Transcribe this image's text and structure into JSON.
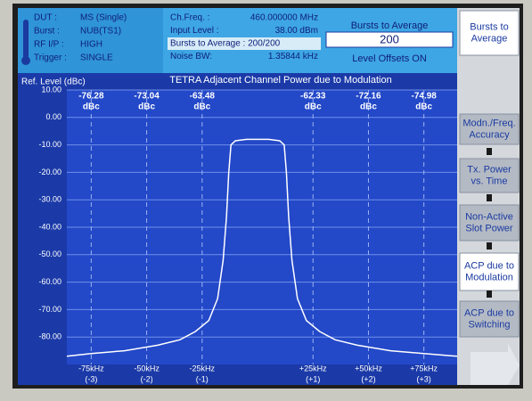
{
  "header": {
    "status": [
      [
        "DUT :",
        "MS (Single)"
      ],
      [
        "Burst :",
        "NUB(TS1)"
      ],
      [
        "RF I/P :",
        "HIGH"
      ],
      [
        "Trigger :",
        "SINGLE"
      ]
    ],
    "settings": [
      [
        "Ch.Freq. :",
        "460.000000 MHz"
      ],
      [
        "Input Level :",
        "38.00 dBm"
      ],
      [
        "Bursts to Average : 200/200",
        ""
      ],
      [
        "Noise BW:",
        "1.35844 kHz"
      ]
    ],
    "entry_title": "Bursts to Average",
    "entry_value": "200",
    "entry_note": "Level Offsets ON"
  },
  "softkeys": [
    [
      "Bursts to",
      "Average"
    ],
    [
      "Modn./Freq.",
      "Accuracy"
    ],
    [
      "Tx. Power",
      "vs. Time"
    ],
    [
      "Non-Active",
      "Slot Power"
    ],
    [
      "ACP due to",
      "Modulation"
    ],
    [
      "ACP due to",
      "Switching"
    ]
  ],
  "chart_data": {
    "type": "line",
    "title": "TETRA Adjacent Channel Power due to Modulation",
    "y_label": "Ref. Level (dBc)",
    "color": "#ffffff",
    "xlim": [
      -86,
      90
    ],
    "ylim": [
      -90,
      10
    ],
    "yticks": [
      {
        "value": 10,
        "label": "10.00"
      },
      {
        "value": 0,
        "label": "0.00"
      },
      {
        "value": -10,
        "label": "-10.00"
      },
      {
        "value": -20,
        "label": "-20.00"
      },
      {
        "value": -30,
        "label": "-30.00"
      },
      {
        "value": -40,
        "label": "-40.00"
      },
      {
        "value": -50,
        "label": "-50.00"
      },
      {
        "value": -60,
        "label": "-60.00"
      },
      {
        "value": -70,
        "label": "-70.00"
      },
      {
        "value": -80,
        "label": "-80.00"
      }
    ],
    "xticks": [
      {
        "value": -75,
        "label": "-75kHz"
      },
      {
        "value": -50,
        "label": "-50kHz"
      },
      {
        "value": -25,
        "label": "-25kHz"
      },
      {
        "value": 25,
        "label": "+25kHz"
      },
      {
        "value": 50,
        "label": "+50kHz"
      },
      {
        "value": 75,
        "label": "+75kHz"
      }
    ],
    "xtick_channels": [
      "(-3)",
      "(-2)",
      "(-1)",
      "(+1)",
      "(+2)",
      "(+3)"
    ],
    "channel_power_unit": "dBc",
    "channel_power": [
      -76.28,
      -73.04,
      -63.48,
      -62.33,
      -72.16,
      -74.98
    ],
    "x": [
      -86,
      -75,
      -60,
      -45,
      -35,
      -28,
      -22,
      -18,
      -15.5,
      -14,
      -13,
      -12,
      -10,
      -5,
      0,
      5,
      10,
      12,
      13,
      14,
      15.5,
      18,
      22,
      28,
      35,
      45,
      60,
      75,
      90
    ],
    "values": [
      -87,
      -86,
      -85,
      -83,
      -81,
      -78,
      -74,
      -66,
      -52,
      -36,
      -20,
      -10,
      -8.5,
      -8,
      -8,
      -8,
      -8.5,
      -10,
      -20,
      -36,
      -52,
      -66,
      -74,
      -78,
      -81,
      -83,
      -85,
      -86,
      -87
    ]
  }
}
